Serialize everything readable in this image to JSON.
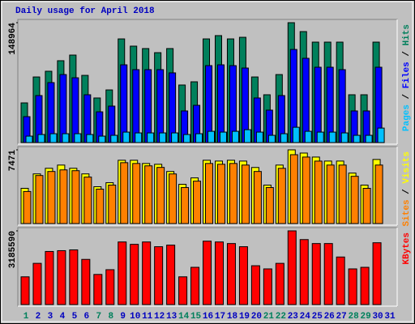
{
  "chart_data": [
    {
      "type": "bar",
      "title": "Daily usage for April 2018",
      "title_color": "#0000c0",
      "ylim": [
        0,
        148964
      ],
      "yticks": [
        148964
      ],
      "series": [
        {
          "name": "Hits",
          "color": "#00805c",
          "values": [
            49300,
            81500,
            88600,
            101700,
            108700,
            83500,
            55400,
            65400,
            128800,
            119800,
            116800,
            111700,
            116800,
            71500,
            75500,
            128800,
            132900,
            128800,
            130800,
            81500,
            59400,
            84500,
            148964,
            137900,
            124800,
            124800,
            124800,
            59400,
            59400,
            124800,
            null
          ]
        },
        {
          "name": "Files",
          "color": "#0000ff",
          "values": [
            32200,
            58400,
            74500,
            84500,
            80500,
            59400,
            38200,
            45300,
            96600,
            90600,
            90600,
            90600,
            86600,
            39300,
            46300,
            95600,
            96600,
            95600,
            92600,
            55400,
            40300,
            58400,
            115700,
            104700,
            93600,
            93600,
            90600,
            39300,
            39300,
            93600,
            null
          ]
        },
        {
          "name": "Pages",
          "color": "#00c0ff",
          "values": [
            8000,
            10000,
            11000,
            11000,
            11000,
            10000,
            8000,
            9000,
            13000,
            12000,
            12000,
            12000,
            12000,
            10000,
            11000,
            14000,
            13000,
            14000,
            16000,
            13000,
            9000,
            11000,
            19000,
            14000,
            13000,
            13000,
            12000,
            9000,
            9000,
            18000,
            null
          ]
        }
      ]
    },
    {
      "type": "bar",
      "ylim": [
        0,
        7471
      ],
      "yticks": [
        7471
      ],
      "series": [
        {
          "name": "Visits",
          "color": "#ffff00",
          "values": [
            3573,
            5034,
            5603,
            5928,
            5603,
            5034,
            3735,
            4141,
            6415,
            6415,
            6090,
            6009,
            5278,
            3979,
            4628,
            6415,
            6334,
            6415,
            6334,
            5684,
            3898,
            5928,
            7471,
            7146,
            6740,
            6334,
            6334,
            5116,
            3898,
            6496,
            null
          ]
        },
        {
          "name": "Sites",
          "color": "#ff8000",
          "values": [
            3250,
            4870,
            5280,
            5440,
            5360,
            4710,
            3490,
            3900,
            6170,
            6090,
            5850,
            5690,
            5030,
            3650,
            4300,
            6090,
            6010,
            6090,
            5930,
            5280,
            3650,
            5600,
            6980,
            6740,
            6330,
            5930,
            5930,
            4790,
            3570,
            5930,
            null
          ]
        }
      ]
    },
    {
      "type": "bar",
      "ylim": [
        0,
        3185590
      ],
      "yticks": [
        3185590
      ],
      "categories": [
        "1",
        "2",
        "3",
        "4",
        "5",
        "6",
        "7",
        "8",
        "9",
        "10",
        "11",
        "12",
        "13",
        "14",
        "15",
        "16",
        "17",
        "18",
        "19",
        "20",
        "21",
        "22",
        "23",
        "24",
        "25",
        "26",
        "27",
        "28",
        "29",
        "30",
        "31"
      ],
      "label_colors": [
        "#00805c",
        "#0000c0",
        "#0000c0",
        "#0000c0",
        "#0000c0",
        "#0000c0",
        "#00805c",
        "#00805c",
        "#0000c0",
        "#0000c0",
        "#0000c0",
        "#0000c0",
        "#0000c0",
        "#00805c",
        "#00805c",
        "#0000c0",
        "#0000c0",
        "#0000c0",
        "#0000c0",
        "#0000c0",
        "#00805c",
        "#00805c",
        "#0000c0",
        "#0000c0",
        "#0000c0",
        "#0000c0",
        "#0000c0",
        "#00805c",
        "#00805c",
        "#0000c0",
        "#0000c0"
      ],
      "series": [
        {
          "name": "KBytes",
          "color": "#ff0000",
          "values": [
            1198900,
            1781200,
            2294900,
            2329200,
            2363500,
            1952400,
            1301600,
            1507100,
            2706000,
            2603200,
            2706000,
            2500500,
            2569000,
            1198900,
            1609900,
            2740200,
            2706000,
            2637500,
            2500500,
            1678400,
            1541400,
            1781200,
            3185590,
            2808700,
            2637500,
            2637500,
            2055200,
            1541400,
            1609900,
            2671700,
            null
          ]
        }
      ]
    }
  ]
}
